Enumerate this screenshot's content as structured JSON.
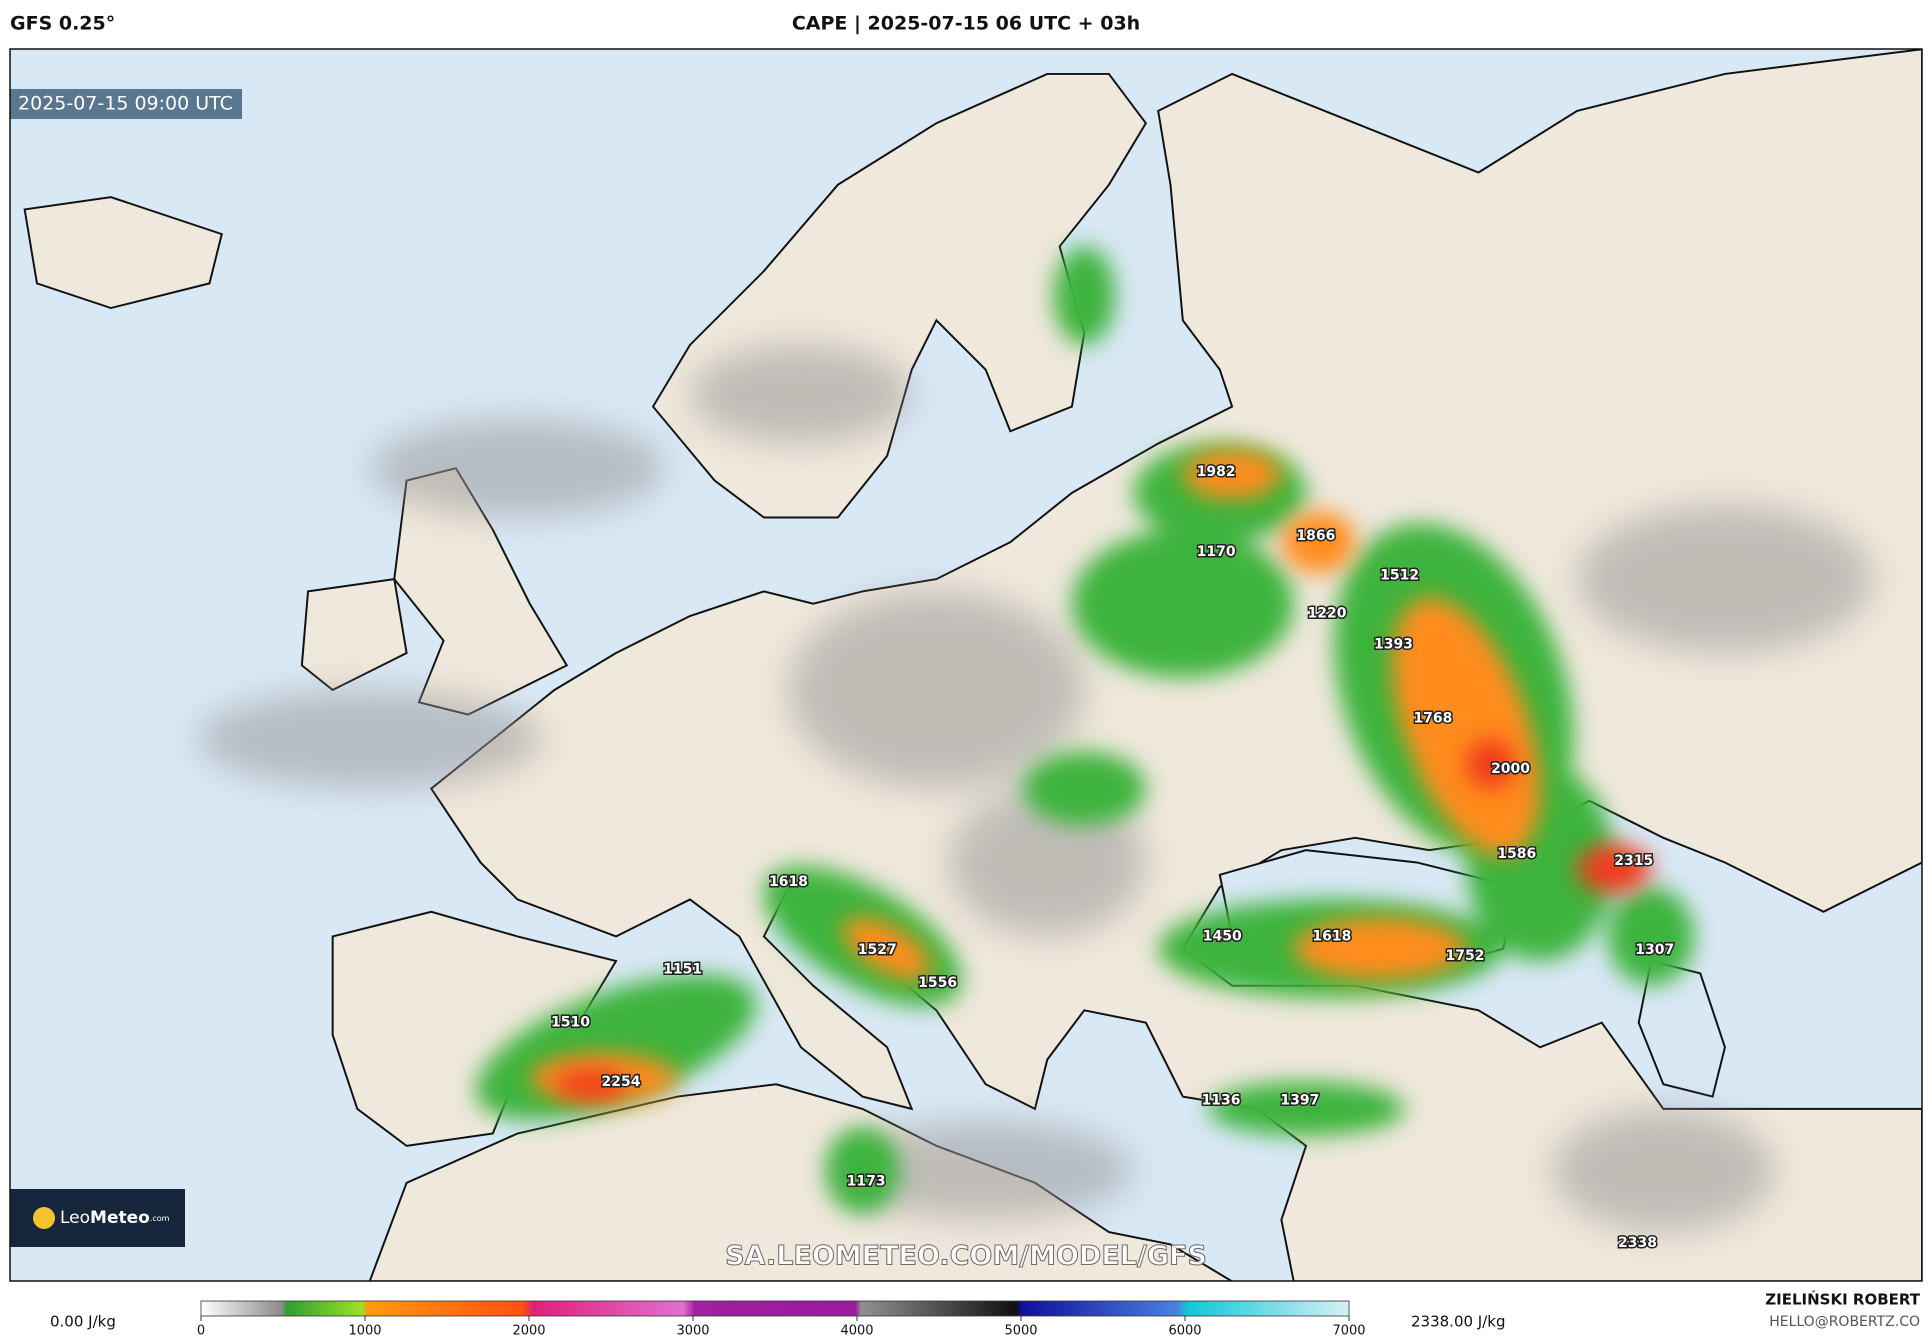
{
  "header": {
    "model": "GFS 0.25°",
    "title": "CAPE | 2025-07-15 06 UTC + 03h"
  },
  "map": {
    "valid_time": "2025-07-15 09:00 UTC",
    "logo": {
      "name": "Leo",
      "name_bold": "Meteo",
      "suffix": ".com"
    },
    "watermark": "SA.LEOMETEO.COM/MODEL/GFS",
    "labels": [
      1982,
      1170,
      1866,
      1512,
      1220,
      1393,
      1768,
      2000,
      1586,
      2315,
      1307,
      1752,
      1618,
      1450,
      1618,
      1527,
      1556,
      1151,
      1510,
      2254,
      1136,
      1397,
      1173,
      2338
    ]
  },
  "colorbar": {
    "min_label": "0.00 J/kg",
    "max_label": "2338.00 J/kg",
    "range": [
      0,
      7000
    ],
    "ticks": [
      0,
      1000,
      2000,
      3000,
      4000,
      5000,
      6000,
      7000
    ]
  },
  "footer": {
    "author": "ZIELIŃSKI ROBERT",
    "email": "HELLO@ROBERTZ.CO"
  }
}
